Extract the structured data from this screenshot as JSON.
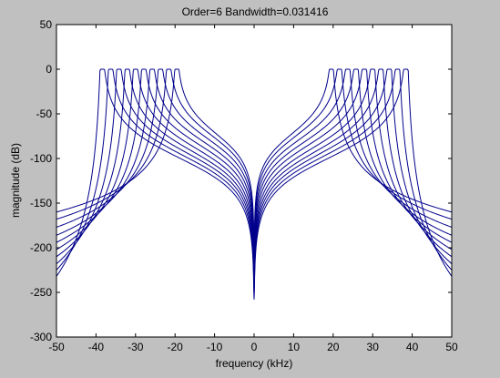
{
  "figure": {
    "background_color": "#c0c0c0",
    "axes_background_color": "#ffffff",
    "line_color": "#00008b"
  },
  "chart_data": {
    "type": "line",
    "title": "Order=6 Bandwidth=0.031416",
    "xlabel": "frequency (kHz)",
    "ylabel": "magnitude (dB)",
    "xlim": [
      -50,
      50
    ],
    "ylim": [
      -300,
      50
    ],
    "xticks": [
      -50,
      -40,
      -30,
      -20,
      -10,
      0,
      10,
      20,
      30,
      40,
      50
    ],
    "yticks": [
      -300,
      -250,
      -200,
      -150,
      -100,
      -50,
      0,
      50
    ],
    "grid": false,
    "legend": "none",
    "filter_order": 6,
    "series": [
      {
        "center_khz": 19.5,
        "passband_khz": [
          19.0,
          20.1
        ],
        "y_at_0khz": -193,
        "y_at_edge_khz": -160
      },
      {
        "center_khz": 21.6,
        "passband_khz": [
          21.0,
          22.2
        ],
        "y_at_0khz": -201,
        "y_at_edge_khz": -168
      },
      {
        "center_khz": 23.7,
        "passband_khz": [
          23.1,
          24.3
        ],
        "y_at_0khz": -209,
        "y_at_edge_khz": -177
      },
      {
        "center_khz": 25.8,
        "passband_khz": [
          25.2,
          26.4
        ],
        "y_at_0khz": -217,
        "y_at_edge_khz": -186
      },
      {
        "center_khz": 27.9,
        "passband_khz": [
          27.3,
          28.5
        ],
        "y_at_0khz": -225,
        "y_at_edge_khz": -194
      },
      {
        "center_khz": 30.0,
        "passband_khz": [
          29.4,
          30.6
        ],
        "y_at_0khz": -233,
        "y_at_edge_khz": -202
      },
      {
        "center_khz": 32.1,
        "passband_khz": [
          31.5,
          32.7
        ],
        "y_at_0khz": -240,
        "y_at_edge_khz": -210
      },
      {
        "center_khz": 34.2,
        "passband_khz": [
          33.6,
          34.8
        ],
        "y_at_0khz": -246,
        "y_at_edge_khz": -218
      },
      {
        "center_khz": 36.3,
        "passband_khz": [
          35.7,
          36.9
        ],
        "y_at_0khz": -252,
        "y_at_edge_khz": -225
      },
      {
        "center_khz": 38.4,
        "passband_khz": [
          37.8,
          39.0
        ],
        "y_at_0khz": -258,
        "y_at_edge_khz": -232
      }
    ]
  }
}
